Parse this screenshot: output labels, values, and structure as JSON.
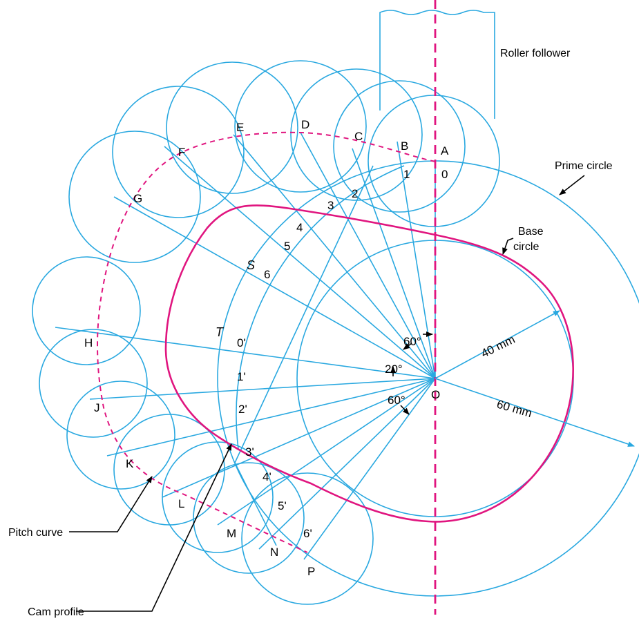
{
  "labels": {
    "roller_follower": "Roller  follower",
    "prime_circle": "Prime circle",
    "base_circle_l1": "Base",
    "base_circle_l2": "circle",
    "pitch_curve": "Pitch curve",
    "cam_profile": "Cam profile",
    "dim_40": "40 mm",
    "dim_60": "60 mm",
    "ang_60_top": "60°",
    "ang_20": "20°",
    "ang_60_bot": "60°",
    "center": "O",
    "s": "S",
    "t": "T"
  },
  "points": {
    "A": "A",
    "B": "B",
    "C": "C",
    "D": "D",
    "E": "E",
    "F": "F",
    "G": "G",
    "H": "H",
    "J": "J",
    "K": "K",
    "L": "L",
    "M": "M",
    "N": "N",
    "P": "P"
  },
  "ticks": {
    "t0": "0",
    "t1": "1",
    "t2": "2",
    "t3": "3",
    "t4": "4",
    "t5": "5",
    "t6": "6",
    "p0": "0'",
    "p1": "1'",
    "p2": "2'",
    "p3": "3'",
    "p4": "4'",
    "p5": "5'",
    "p6": "6'"
  },
  "colors": {
    "blue": "#29a8e0",
    "magenta": "#e0157f",
    "black": "#000000"
  }
}
